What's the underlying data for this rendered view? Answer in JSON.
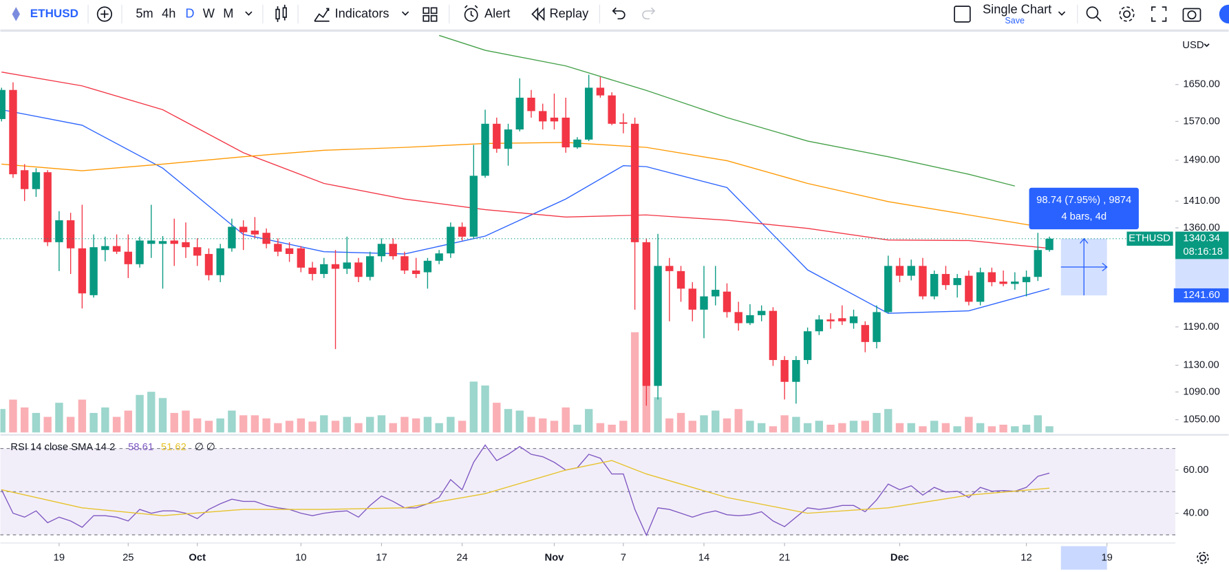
{
  "toolbar": {
    "symbol": "ETHUSD",
    "intervals": [
      "5m",
      "4h",
      "D",
      "W",
      "M"
    ],
    "indicators": "Indicators",
    "alert": "Alert",
    "replay": "Replay",
    "layout": "Single Chart",
    "save": "Save"
  },
  "chart_data": {
    "type": "candlestick",
    "currency": "USD",
    "symbol_tag": "ETHUSD",
    "log_scale": true,
    "up_color": "#089981",
    "down_color": "#f23645",
    "ylim": [
      1032,
      1769
    ],
    "yticks": [
      {
        "value": 1650,
        "label": "1650.00"
      },
      {
        "value": 1570,
        "label": "1570.00"
      },
      {
        "value": 1490,
        "label": "1490.00"
      },
      {
        "value": 1410,
        "label": "1410.00"
      },
      {
        "value": 1360,
        "label": "1360.00"
      },
      {
        "value": 1190,
        "label": "1190.00"
      },
      {
        "value": 1130,
        "label": "1130.00"
      },
      {
        "value": 1090,
        "label": "1090.00"
      },
      {
        "value": 1050,
        "label": "1050.00"
      }
    ],
    "xticks": [
      {
        "value": "Sep 19",
        "label": "19"
      },
      {
        "value": "Sep 25",
        "label": "25"
      },
      {
        "value": "Oct 1",
        "label": "Oct"
      },
      {
        "value": "Oct 10",
        "label": "10"
      },
      {
        "value": "Oct 17",
        "label": "17"
      },
      {
        "value": "Oct 24",
        "label": "24"
      },
      {
        "value": "Nov 1",
        "label": "Nov"
      },
      {
        "value": "Nov 7",
        "label": "7"
      },
      {
        "value": "Nov 14",
        "label": "14"
      },
      {
        "value": "Nov 21",
        "label": "21"
      },
      {
        "value": "Dec 1",
        "label": "Dec"
      },
      {
        "value": "Dec 12",
        "label": "12"
      },
      {
        "value": "Dec 19",
        "label": "19"
      }
    ],
    "x": [
      "Sep 14",
      "Sep 15",
      "Sep 16",
      "Sep 17",
      "Sep 18",
      "Sep 19",
      "Sep 20",
      "Sep 21",
      "Sep 22",
      "Sep 23",
      "Sep 24",
      "Sep 25",
      "Sep 26",
      "Sep 27",
      "Sep 28",
      "Sep 29",
      "Sep 30",
      "Oct 1",
      "Oct 2",
      "Oct 3",
      "Oct 4",
      "Oct 5",
      "Oct 6",
      "Oct 7",
      "Oct 8",
      "Oct 9",
      "Oct 10",
      "Oct 11",
      "Oct 12",
      "Oct 13",
      "Oct 14",
      "Oct 15",
      "Oct 16",
      "Oct 17",
      "Oct 18",
      "Oct 19",
      "Oct 20",
      "Oct 21",
      "Oct 22",
      "Oct 23",
      "Oct 24",
      "Oct 25",
      "Oct 26",
      "Oct 27",
      "Oct 28",
      "Oct 29",
      "Oct 30",
      "Oct 31",
      "Nov 1",
      "Nov 2",
      "Nov 3",
      "Nov 4",
      "Nov 5",
      "Nov 6",
      "Nov 7",
      "Nov 8",
      "Nov 9",
      "Nov 10",
      "Nov 11",
      "Nov 12",
      "Nov 13",
      "Nov 14",
      "Nov 15",
      "Nov 16",
      "Nov 17",
      "Nov 18",
      "Nov 19",
      "Nov 20",
      "Nov 21",
      "Nov 22",
      "Nov 23",
      "Nov 24",
      "Nov 25",
      "Nov 26",
      "Nov 27",
      "Nov 28",
      "Nov 29",
      "Nov 30",
      "Dec 1",
      "Dec 2",
      "Dec 3",
      "Dec 4",
      "Dec 5",
      "Dec 6",
      "Dec 7",
      "Dec 8",
      "Dec 9",
      "Dec 10",
      "Dec 11",
      "Dec 12",
      "Dec 13",
      "Dec 14"
    ],
    "open": [
      1575,
      1638,
      1470,
      1433,
      1466,
      1334,
      1374,
      1323,
      1242,
      1320,
      1327,
      1317,
      1295,
      1331,
      1331,
      1337,
      1334,
      1325,
      1313,
      1276,
      1323,
      1362,
      1355,
      1351,
      1331,
      1323,
      1323,
      1289,
      1278,
      1295,
      1287,
      1298,
      1273,
      1309,
      1331,
      1309,
      1284,
      1281,
      1301,
      1314,
      1362,
      1344,
      1459,
      1565,
      1513,
      1553,
      1621,
      1592,
      1578,
      1578,
      1516,
      1532,
      1643,
      1626,
      1568,
      1565,
      1334,
      1099,
      1292,
      1283,
      1253,
      1218,
      1240,
      1248,
      1214,
      1196,
      1209,
      1216,
      1138,
      1105,
      1138,
      1183,
      1202,
      1204,
      1196,
      1193,
      1166,
      1214,
      1292,
      1275,
      1292,
      1240,
      1278,
      1259,
      1275,
      1231,
      1281,
      1265,
      1261,
      1264,
      1273,
      1320
    ],
    "high": [
      1643,
      1655,
      1482,
      1474,
      1470,
      1391,
      1388,
      1403,
      1348,
      1344,
      1348,
      1348,
      1344,
      1403,
      1345,
      1377,
      1370,
      1341,
      1323,
      1331,
      1377,
      1374,
      1380,
      1359,
      1341,
      1334,
      1327,
      1299,
      1306,
      1320,
      1344,
      1306,
      1317,
      1341,
      1341,
      1317,
      1306,
      1306,
      1320,
      1370,
      1370,
      1521,
      1595,
      1578,
      1565,
      1664,
      1638,
      1608,
      1630,
      1621,
      1537,
      1672,
      1667,
      1633,
      1587,
      1578,
      1341,
      1349,
      1306,
      1292,
      1264,
      1292,
      1292,
      1262,
      1231,
      1227,
      1225,
      1222,
      1144,
      1144,
      1189,
      1209,
      1212,
      1225,
      1218,
      1199,
      1225,
      1310,
      1306,
      1303,
      1306,
      1284,
      1292,
      1278,
      1284,
      1289,
      1289,
      1284,
      1281,
      1284,
      1351,
      1344
    ],
    "low": [
      1570,
      1455,
      1410,
      1418,
      1327,
      1283,
      1278,
      1220,
      1238,
      1300,
      1313,
      1271,
      1289,
      1306,
      1253,
      1292,
      1306,
      1292,
      1267,
      1264,
      1317,
      1320,
      1341,
      1323,
      1309,
      1299,
      1281,
      1267,
      1271,
      1155,
      1278,
      1264,
      1267,
      1299,
      1303,
      1278,
      1271,
      1253,
      1295,
      1306,
      1337,
      1341,
      1455,
      1505,
      1479,
      1549,
      1578,
      1553,
      1553,
      1505,
      1513,
      1529,
      1621,
      1562,
      1545,
      1218,
      1070,
      1079,
      1199,
      1231,
      1199,
      1172,
      1225,
      1205,
      1184,
      1193,
      1199,
      1129,
      1079,
      1073,
      1132,
      1177,
      1187,
      1193,
      1187,
      1150,
      1156,
      1212,
      1264,
      1267,
      1235,
      1235,
      1251,
      1238,
      1225,
      1225,
      1257,
      1257,
      1251,
      1240,
      1266,
      1317
    ],
    "close": [
      1638,
      1462,
      1433,
      1466,
      1334,
      1374,
      1323,
      1245,
      1325,
      1327,
      1317,
      1295,
      1337,
      1337,
      1336,
      1331,
      1325,
      1310,
      1276,
      1323,
      1362,
      1352,
      1348,
      1331,
      1317,
      1313,
      1289,
      1278,
      1295,
      1287,
      1298,
      1273,
      1309,
      1331,
      1309,
      1284,
      1278,
      1301,
      1314,
      1362,
      1344,
      1459,
      1565,
      1513,
      1553,
      1621,
      1592,
      1570,
      1570,
      1516,
      1532,
      1643,
      1626,
      1565,
      1565,
      1334,
      1099,
      1292,
      1283,
      1253,
      1218,
      1240,
      1251,
      1214,
      1196,
      1209,
      1216,
      1138,
      1105,
      1138,
      1183,
      1202,
      1199,
      1199,
      1207,
      1166,
      1214,
      1292,
      1275,
      1292,
      1240,
      1278,
      1259,
      1271,
      1231,
      1281,
      1264,
      1261,
      1265,
      1273,
      1320,
      1340.34
    ],
    "volume": {
      "ylim": [
        0,
        510
      ],
      "values": [
        30,
        42,
        32,
        25,
        20,
        38,
        20,
        42,
        25,
        32,
        20,
        28,
        48,
        52,
        44,
        25,
        28,
        18,
        15,
        18,
        28,
        22,
        22,
        18,
        12,
        15,
        18,
        14,
        22,
        15,
        20,
        12,
        20,
        22,
        12,
        20,
        18,
        20,
        12,
        20,
        15,
        65,
        60,
        38,
        30,
        28,
        20,
        18,
        15,
        32,
        10,
        30,
        12,
        10,
        15,
        128,
        75,
        45,
        18,
        25,
        15,
        22,
        28,
        18,
        30,
        15,
        12,
        8,
        22,
        20,
        12,
        15,
        10,
        12,
        15,
        15,
        25,
        30,
        12,
        12,
        8,
        15,
        12,
        8,
        20,
        12,
        8,
        10,
        8,
        10,
        22,
        8
      ]
    },
    "moving_averages": [
      {
        "color": "#2962ff",
        "x": [
          "Sep 14",
          "Sep 21",
          "Sep 28",
          "Oct 5",
          "Oct 12",
          "Oct 19",
          "Oct 26",
          "Nov 2",
          "Nov 7",
          "Nov 9",
          "Nov 16",
          "Nov 23",
          "Nov 30",
          "Dec 7",
          "Dec 14"
        ],
        "values": [
          1595,
          1562,
          1474,
          1348,
          1317,
          1313,
          1345,
          1414,
          1479,
          1477,
          1436,
          1285,
          1212,
          1216,
          1253
        ]
      },
      {
        "color": "#f23645",
        "x": [
          "Sep 14",
          "Sep 21",
          "Sep 28",
          "Oct 5",
          "Oct 12",
          "Oct 19",
          "Oct 26",
          "Nov 2",
          "Nov 9",
          "Nov 16",
          "Nov 23",
          "Nov 30",
          "Dec 7",
          "Dec 14"
        ],
        "values": [
          1678,
          1647,
          1595,
          1505,
          1444,
          1414,
          1394,
          1380,
          1384,
          1374,
          1359,
          1338,
          1337,
          1323
        ]
      },
      {
        "color": "#ff9800",
        "x": [
          "Sep 14",
          "Sep 21",
          "Sep 28",
          "Oct 5",
          "Oct 12",
          "Oct 19",
          "Oct 26",
          "Nov 2",
          "Nov 9",
          "Nov 16",
          "Nov 23",
          "Nov 30",
          "Dec 7",
          "Dec 14"
        ],
        "values": [
          1482,
          1469,
          1482,
          1497,
          1510,
          1516,
          1524,
          1526,
          1516,
          1489,
          1444,
          1409,
          1384,
          1359
        ]
      },
      {
        "color": "#43a047",
        "x": [
          "Oct 22",
          "Oct 26",
          "Nov 2",
          "Nov 9",
          "Nov 16",
          "Nov 23",
          "Nov 30",
          "Dec 7",
          "Dec 11"
        ],
        "values": [
          1763,
          1728,
          1692,
          1637,
          1578,
          1529,
          1497,
          1462,
          1439
        ]
      }
    ],
    "last_price": 1340.34,
    "countdown": "08:16:18",
    "measure": {
      "x": [
        "Dec 15",
        "Dec 19"
      ],
      "price": {
        "value": 1241.6,
        "label": "1241.60"
      },
      "text": "98.74 (7.95%) , 9874",
      "bars": "4 bars, 4d"
    },
    "rsi": {
      "legend": "RSI 14 close SMA 14 2",
      "extra": "∅ ∅",
      "color": "#7e57c2",
      "ylim": [
        27.3,
        74.5
      ],
      "yticks": [
        {
          "value": 60,
          "label": "60.00"
        },
        {
          "value": 40,
          "label": "40.00"
        }
      ],
      "levels": [
        30,
        50,
        70
      ],
      "values": [
        50.9,
        40.0,
        38.2,
        41.1,
        35.6,
        38.2,
        36.4,
        33.5,
        38.9,
        38.9,
        38.2,
        36.4,
        41.8,
        40.0,
        41.1,
        41.1,
        40.0,
        37.5,
        41.8,
        44.4,
        46.5,
        45.5,
        45.5,
        43.6,
        42.5,
        41.8,
        40.0,
        38.9,
        40.0,
        40.7,
        41.1,
        38.2,
        43.6,
        48.0,
        45.5,
        42.5,
        42.5,
        44.4,
        47.3,
        55.6,
        50.9,
        63.6,
        71.6,
        64.4,
        67.3,
        70.9,
        67.3,
        66.2,
        63.6,
        60.0,
        61.1,
        67.3,
        65.5,
        58.2,
        58.2,
        41.8,
        29.8,
        42.5,
        41.8,
        40.0,
        38.2,
        40.0,
        41.1,
        39.3,
        38.9,
        39.3,
        40.7,
        36.4,
        33.8,
        38.2,
        42.5,
        41.8,
        42.5,
        43.6,
        43.6,
        40.7,
        46.2,
        53.5,
        50.9,
        52.7,
        48.4,
        52.0,
        49.8,
        50.2,
        47.3,
        52.0,
        50.2,
        50.5,
        50.2,
        52.0,
        57.1,
        58.61
      ],
      "sma": {
        "color": "#e6c229",
        "x": [
          "Sep 14",
          "Sep 21",
          "Sep 28",
          "Oct 5",
          "Oct 12",
          "Oct 19",
          "Oct 26",
          "Nov 2",
          "Nov 6",
          "Nov 9",
          "Nov 16",
          "Nov 23",
          "Nov 30",
          "Dec 7",
          "Dec 14"
        ],
        "values": [
          50.9,
          42.5,
          38.9,
          41.8,
          41.8,
          42.5,
          49.1,
          60.0,
          64.4,
          58.2,
          47.3,
          40.0,
          42.5,
          48.4,
          51.62
        ]
      }
    }
  }
}
